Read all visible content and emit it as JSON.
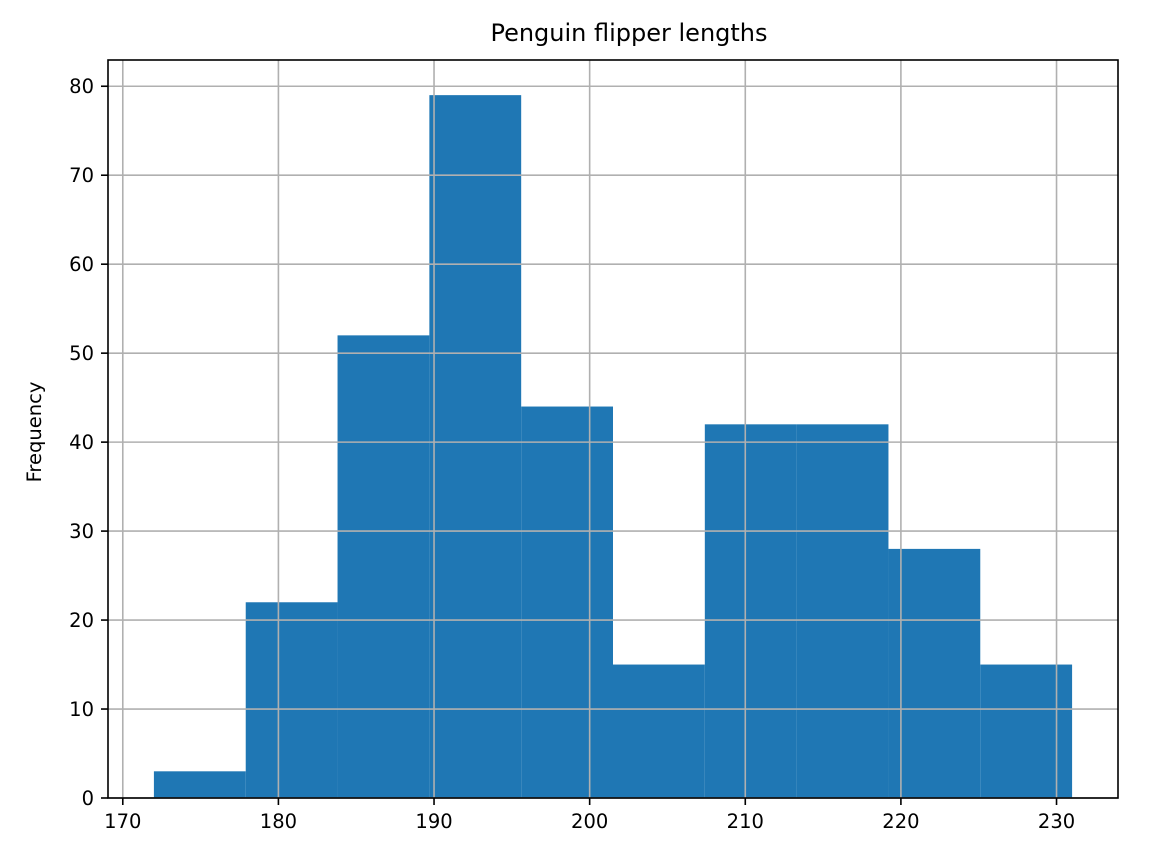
{
  "chart_data": {
    "type": "bar",
    "subtype": "histogram",
    "title": "Penguin flipper lengths",
    "xlabel": "",
    "ylabel": "Frequency",
    "bins": [
      {
        "start": 172.0,
        "end": 177.9,
        "count": 3
      },
      {
        "start": 177.9,
        "end": 183.8,
        "count": 22
      },
      {
        "start": 183.8,
        "end": 189.7,
        "count": 52
      },
      {
        "start": 189.7,
        "end": 195.6,
        "count": 79
      },
      {
        "start": 195.6,
        "end": 201.5,
        "count": 44
      },
      {
        "start": 201.5,
        "end": 207.4,
        "count": 15
      },
      {
        "start": 207.4,
        "end": 213.3,
        "count": 42
      },
      {
        "start": 213.3,
        "end": 219.2,
        "count": 42
      },
      {
        "start": 219.2,
        "end": 225.1,
        "count": 28
      },
      {
        "start": 225.1,
        "end": 231.0,
        "count": 15
      }
    ],
    "xlim": [
      169.05,
      233.95
    ],
    "ylim": [
      0,
      82.95
    ],
    "xticks": [
      170,
      180,
      190,
      200,
      210,
      220,
      230
    ],
    "yticks": [
      0,
      10,
      20,
      30,
      40,
      50,
      60,
      70,
      80
    ],
    "grid": true,
    "legend": "none",
    "colors": {
      "bar": "#1f77b4",
      "grid": "#b0b0b0",
      "axes": "#000000"
    }
  }
}
